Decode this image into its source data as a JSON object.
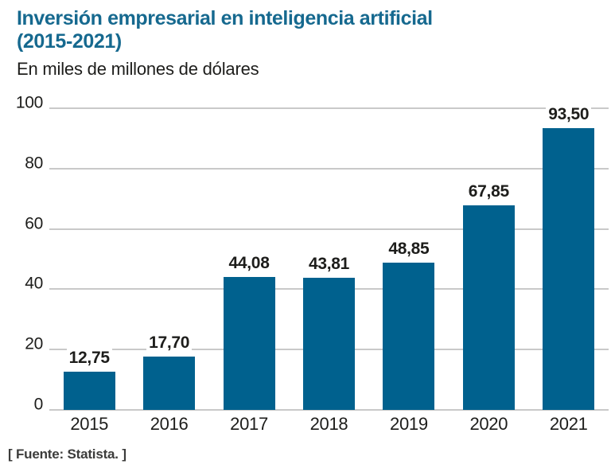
{
  "header": {
    "title_line1": "Inversión empresarial en inteligencia artificial",
    "title_line2": "(2015-2021)",
    "subtitle": "En miles de millones de dólares"
  },
  "source_note": "[ Fuente: Statista. ]",
  "colors": {
    "accent": "#16698f",
    "bar": "#00618e",
    "grid": "#c9c9c9",
    "text": "#1d1d1b"
  },
  "chart_data": {
    "type": "bar",
    "title": "Inversión empresarial en inteligencia artificial (2015-2021)",
    "subtitle": "En miles de millones de dólares",
    "categories": [
      "2015",
      "2016",
      "2017",
      "2018",
      "2019",
      "2020",
      "2021"
    ],
    "values": [
      12.75,
      17.7,
      44.08,
      43.81,
      48.85,
      67.85,
      93.5
    ],
    "value_labels": [
      "12,75",
      "17,70",
      "44,08",
      "43,81",
      "48,85",
      "67,85",
      "93,50"
    ],
    "xlabel": "",
    "ylabel": "",
    "ylim": [
      0,
      100
    ],
    "yticks": [
      0,
      20,
      40,
      60,
      80,
      100
    ],
    "grid": true,
    "legend": "none",
    "source": "[ Fuente: Statista. ]"
  }
}
